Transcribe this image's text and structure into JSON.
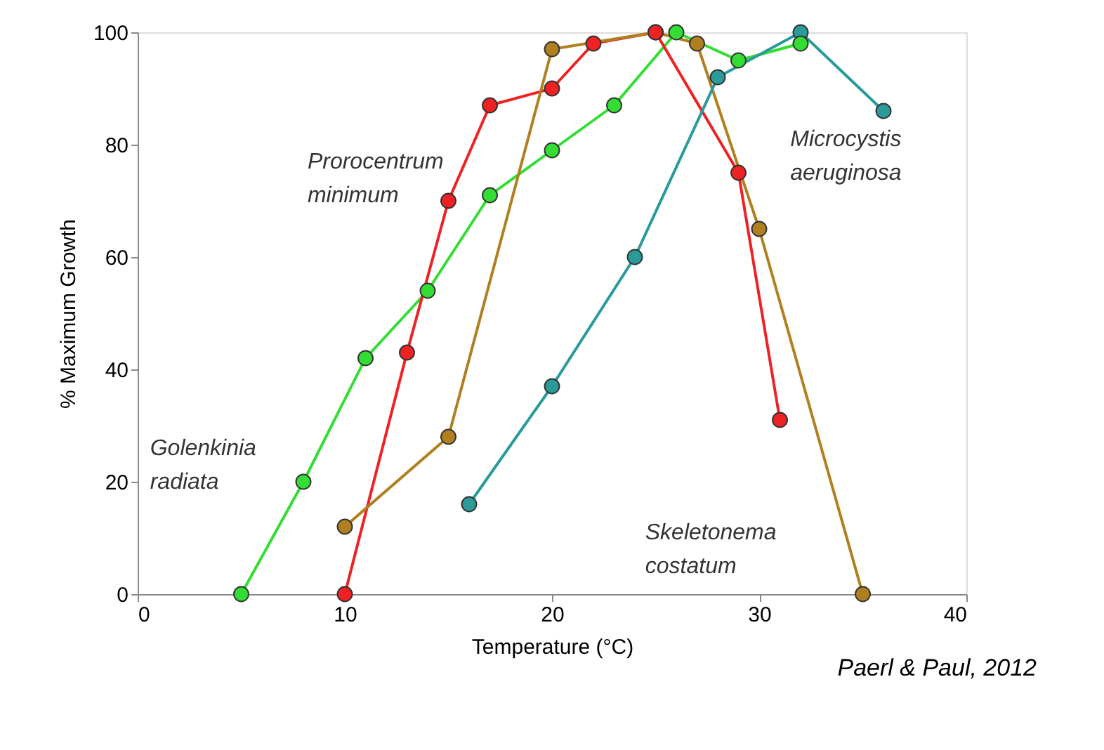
{
  "chart_data": {
    "type": "line",
    "xlabel": "Temperature (°C)",
    "ylabel": "% Maximum Growth",
    "xlim": [
      0,
      40
    ],
    "xticks": [
      0,
      10,
      20,
      30,
      40
    ],
    "ylim": [
      0,
      100
    ],
    "yticks": [
      0,
      20,
      40,
      60,
      80,
      100
    ],
    "grid": false,
    "marker": "circle",
    "line_style": "solid",
    "series": [
      {
        "name": "Golenkinia radiata",
        "color": "#33dd33",
        "x": [
          5,
          8,
          11,
          14,
          17,
          20,
          23,
          26,
          29,
          32
        ],
        "values": [
          0,
          20,
          42,
          54,
          71,
          79,
          87,
          100,
          95,
          98
        ]
      },
      {
        "name": "Prorocentrum minimum",
        "color": "#ee2222",
        "x": [
          10,
          13,
          15,
          17,
          20,
          22,
          25,
          29,
          31
        ],
        "values": [
          0,
          43,
          70,
          87,
          90,
          98,
          100,
          75,
          31
        ]
      },
      {
        "name": "Skeletonema costatum",
        "color": "#b08020",
        "x": [
          10,
          15,
          20,
          25,
          27,
          30,
          35
        ],
        "values": [
          12,
          28,
          97,
          100,
          98,
          65,
          0
        ]
      },
      {
        "name": "Microcystis aeruginosa",
        "color": "#2a9a9a",
        "x": [
          16,
          20,
          24,
          28,
          32,
          36
        ],
        "values": [
          16,
          37,
          60,
          92,
          100,
          86
        ]
      }
    ],
    "annotations": [
      "Paerl & Paul, 2012"
    ]
  }
}
